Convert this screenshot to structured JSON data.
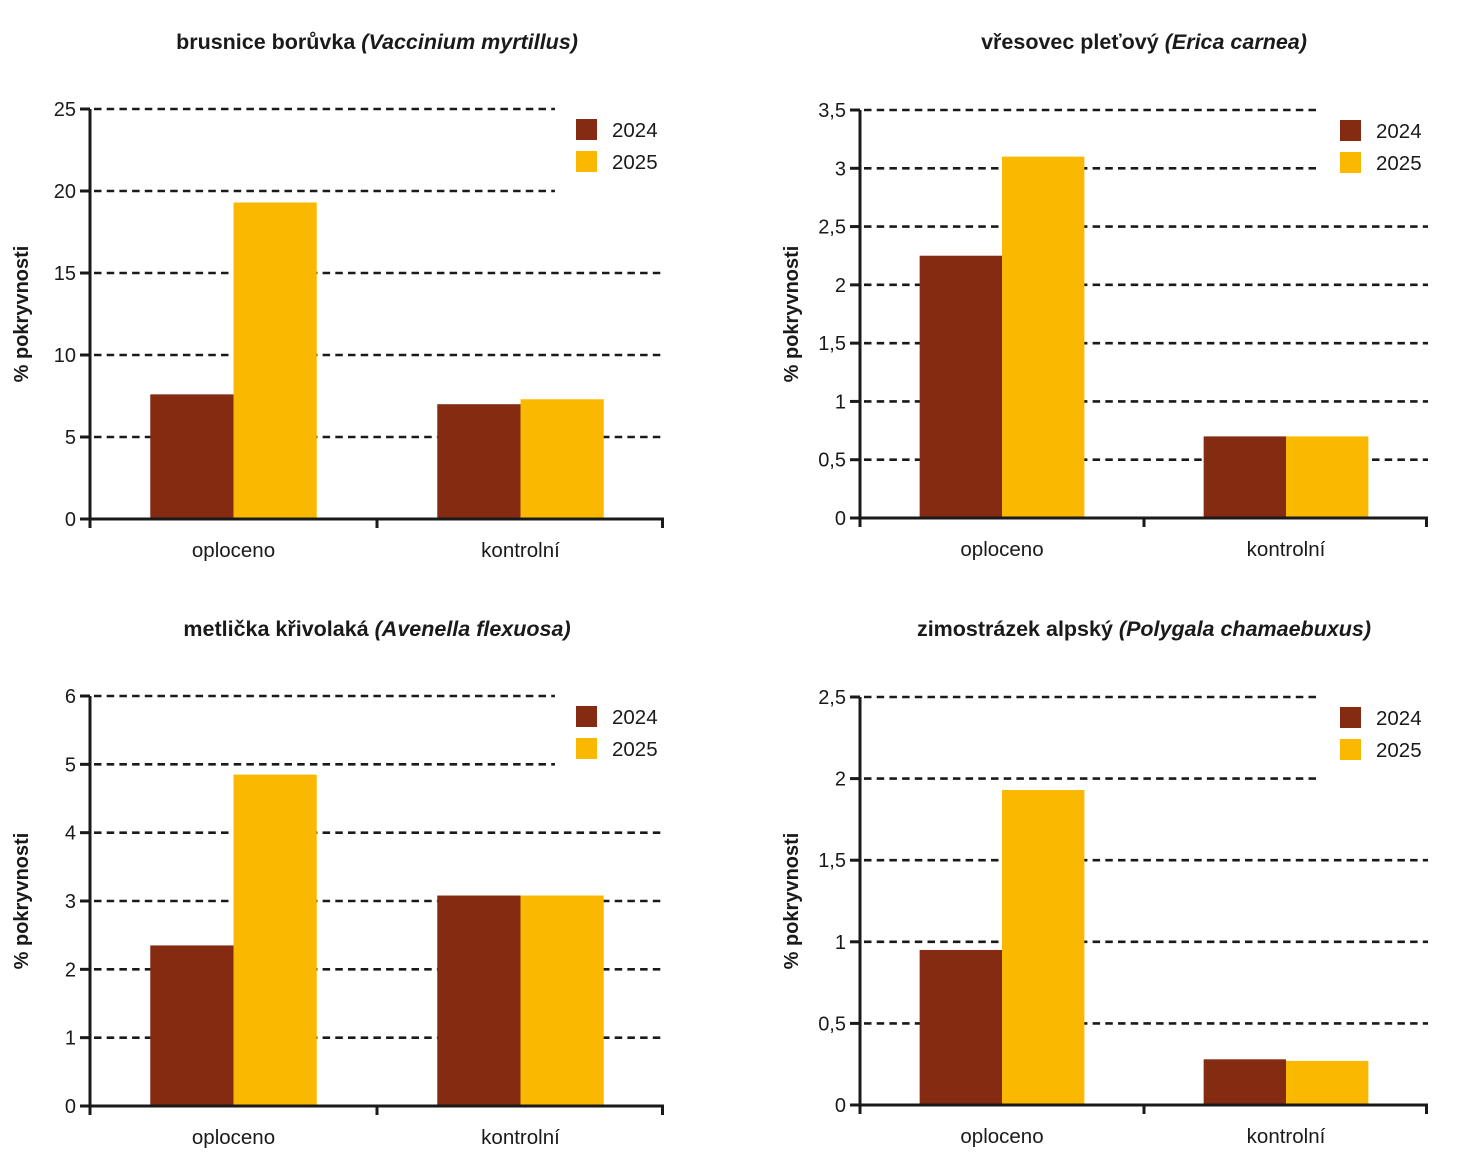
{
  "colors": {
    "series_2024": "#852B11",
    "series_2025": "#FAB900",
    "axis": "#1a1a1a",
    "text": "#1a1a1a",
    "background": "#ffffff"
  },
  "chart_data": [
    {
      "type": "bar",
      "title_main": "brusnice borůvka",
      "title_latin": "(Vaccinium myrtillus)",
      "ylabel": "% pokryvnosti",
      "categories": [
        "oploceno",
        "kontrolní"
      ],
      "series": [
        {
          "name": "2024",
          "color": "#852B11",
          "values": [
            7.6,
            7.0
          ]
        },
        {
          "name": "2025",
          "color": "#FAB900",
          "values": [
            19.3,
            7.3
          ]
        }
      ],
      "ylim": [
        0,
        25
      ],
      "ytick_labels": [
        "0",
        "5",
        "10",
        "15",
        "20",
        "25"
      ],
      "grid": "dashed-horizontal",
      "legend_position": "inside-top-right"
    },
    {
      "type": "bar",
      "title_main": "vřesovec pleťový",
      "title_latin": "(Erica carnea)",
      "ylabel": "% pokryvnosti",
      "categories": [
        "oploceno",
        "kontrolní"
      ],
      "series": [
        {
          "name": "2024",
          "color": "#852B11",
          "values": [
            2.25,
            0.7
          ]
        },
        {
          "name": "2025",
          "color": "#FAB900",
          "values": [
            3.1,
            0.7
          ]
        }
      ],
      "ylim": [
        0,
        3.5
      ],
      "ytick_labels": [
        "0",
        "0,5",
        "1",
        "1,5",
        "2",
        "2,5",
        "3",
        "3,5"
      ],
      "grid": "dashed-horizontal",
      "legend_position": "inside-top-right"
    },
    {
      "type": "bar",
      "title_main": "metlička křivolaká",
      "title_latin": "(Avenella flexuosa)",
      "ylabel": "% pokryvnosti",
      "categories": [
        "oploceno",
        "kontrolní"
      ],
      "series": [
        {
          "name": "2024",
          "color": "#852B11",
          "values": [
            2.35,
            3.08
          ]
        },
        {
          "name": "2025",
          "color": "#FAB900",
          "values": [
            4.85,
            3.08
          ]
        }
      ],
      "ylim": [
        0,
        6
      ],
      "ytick_labels": [
        "0",
        "1",
        "2",
        "3",
        "4",
        "5",
        "6"
      ],
      "grid": "dashed-horizontal",
      "legend_position": "inside-top-right"
    },
    {
      "type": "bar",
      "title_main": "zimostrázek alpský",
      "title_latin": "(Polygala chamaebuxus)",
      "ylabel": "% pokryvnosti",
      "categories": [
        "oploceno",
        "kontrolní"
      ],
      "series": [
        {
          "name": "2024",
          "color": "#852B11",
          "values": [
            0.95,
            0.28
          ]
        },
        {
          "name": "2025",
          "color": "#FAB900",
          "values": [
            1.93,
            0.27
          ]
        }
      ],
      "ylim": [
        0,
        2.5
      ],
      "ytick_labels": [
        "0",
        "0,5",
        "1",
        "1,5",
        "2",
        "2,5"
      ],
      "grid": "dashed-horizontal",
      "legend_position": "inside-top-right"
    }
  ]
}
